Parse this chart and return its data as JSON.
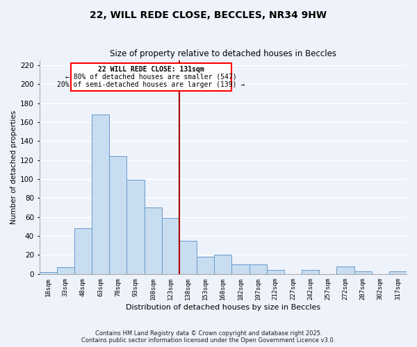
{
  "title": "22, WILL REDE CLOSE, BECCLES, NR34 9HW",
  "subtitle": "Size of property relative to detached houses in Beccles",
  "xlabel": "Distribution of detached houses by size in Beccles",
  "ylabel": "Number of detached properties",
  "bar_color": "#c8ddf0",
  "bar_edge_color": "#6699cc",
  "background_color": "#eef2fa",
  "grid_color": "#ffffff",
  "categories": [
    "18sqm",
    "33sqm",
    "48sqm",
    "63sqm",
    "78sqm",
    "93sqm",
    "108sqm",
    "123sqm",
    "138sqm",
    "153sqm",
    "168sqm",
    "182sqm",
    "197sqm",
    "212sqm",
    "227sqm",
    "242sqm",
    "257sqm",
    "272sqm",
    "287sqm",
    "302sqm",
    "317sqm"
  ],
  "values": [
    2,
    7,
    48,
    168,
    124,
    99,
    70,
    59,
    35,
    18,
    20,
    10,
    10,
    4,
    0,
    4,
    0,
    8,
    3,
    0,
    3
  ],
  "ylim": [
    0,
    225
  ],
  "yticks": [
    0,
    20,
    40,
    60,
    80,
    100,
    120,
    140,
    160,
    180,
    200,
    220
  ],
  "vline_label": "22 WILL REDE CLOSE: 131sqm",
  "annotation_line1": "← 80% of detached houses are smaller (547)",
  "annotation_line2": "20% of semi-detached houses are larger (139) →",
  "footer1": "Contains HM Land Registry data © Crown copyright and database right 2025.",
  "footer2": "Contains public sector information licensed under the Open Government Licence v3.0."
}
